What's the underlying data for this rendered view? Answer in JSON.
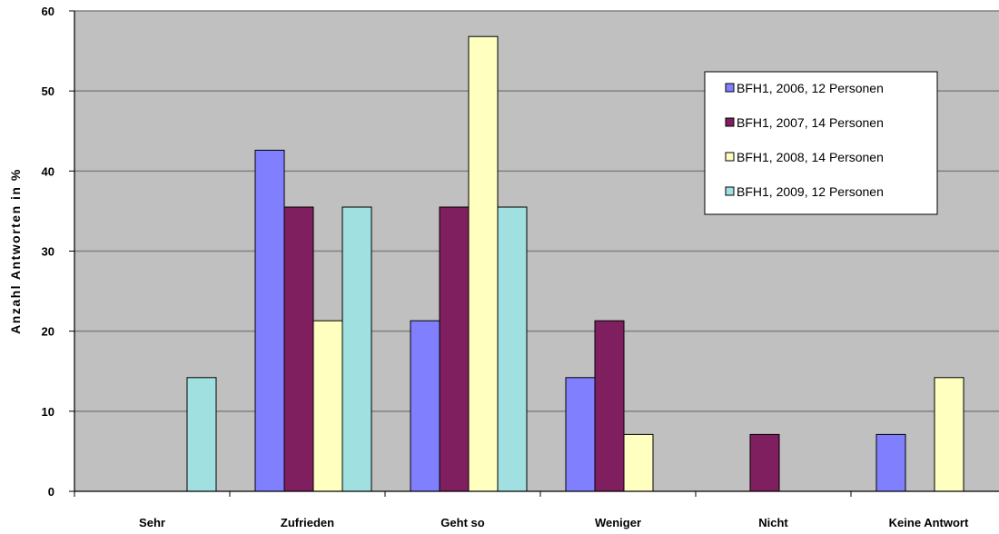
{
  "chart_data": {
    "type": "bar",
    "title": "",
    "xlabel": "",
    "ylabel": "Anzahl Antworten in %",
    "ylim": [
      0,
      60
    ],
    "yticks": [
      "0",
      "10",
      "20",
      "30",
      "40",
      "50",
      "60"
    ],
    "grid": true,
    "legend_position": "top-right",
    "categories": [
      "Sehr",
      "Zufrieden",
      "Geht so",
      "Weniger",
      "Nicht",
      "Keine Antwort"
    ],
    "series": [
      {
        "name": "BFH1, 2006, 12 Personen",
        "color": "#8080ff",
        "values": [
          0,
          42.6,
          21.3,
          14.2,
          0,
          7.1
        ]
      },
      {
        "name": "BFH1, 2007, 14 Personen",
        "color": "#7f1f5f",
        "values": [
          0,
          35.5,
          35.5,
          21.3,
          7.1,
          0
        ]
      },
      {
        "name": "BFH1, 2008, 14 Personen",
        "color": "#ffffc0",
        "values": [
          0,
          21.3,
          56.8,
          7.1,
          0,
          14.2
        ]
      },
      {
        "name": "BFH1, 2009, 12 Personen",
        "color": "#a0e0e0",
        "values": [
          14.2,
          35.5,
          35.5,
          0,
          0,
          0
        ]
      }
    ],
    "plot_background": "#c0c0c0"
  }
}
